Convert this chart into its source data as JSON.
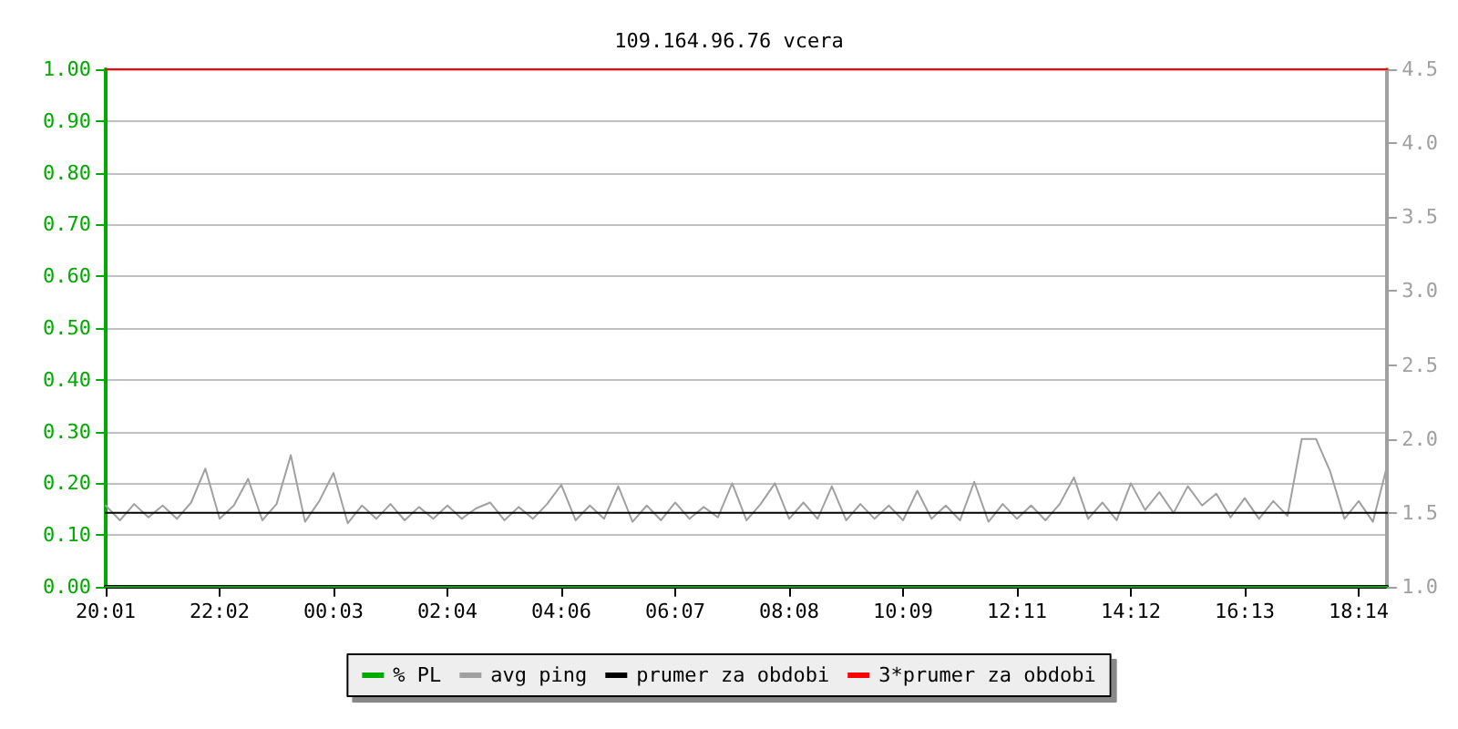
{
  "chart_data": {
    "type": "line",
    "title": "109.164.96.76 vcera",
    "categories": [
      "20:01",
      null,
      null,
      null,
      null,
      null,
      null,
      null,
      "22:02",
      null,
      null,
      null,
      null,
      null,
      null,
      null,
      "00:03",
      null,
      null,
      null,
      null,
      null,
      null,
      null,
      "02:04",
      null,
      null,
      null,
      null,
      null,
      null,
      null,
      "04:06",
      null,
      null,
      null,
      null,
      null,
      null,
      null,
      "06:07",
      null,
      null,
      null,
      null,
      null,
      null,
      null,
      "08:08",
      null,
      null,
      null,
      null,
      null,
      null,
      null,
      "10:09",
      null,
      null,
      null,
      null,
      null,
      null,
      null,
      "12:11",
      null,
      null,
      null,
      null,
      null,
      null,
      null,
      "14:12",
      null,
      null,
      null,
      null,
      null,
      null,
      null,
      "16:13",
      null,
      null,
      null,
      null,
      null,
      null,
      null,
      "18:14",
      null,
      null
    ],
    "ylim": [
      0,
      1
    ],
    "yticks": [
      {
        "value": 0,
        "label": "0.00"
      },
      {
        "value": 0.1,
        "label": "0.10"
      },
      {
        "value": 0.2,
        "label": "0.20"
      },
      {
        "value": 0.3,
        "label": "0.30"
      },
      {
        "value": 0.4,
        "label": "0.40"
      },
      {
        "value": 0.5,
        "label": "0.50"
      },
      {
        "value": 0.6,
        "label": "0.60"
      },
      {
        "value": 0.7,
        "label": "0.70"
      },
      {
        "value": 0.8,
        "label": "0.80"
      },
      {
        "value": 0.9,
        "label": "0.90"
      },
      {
        "value": 1,
        "label": "1.00"
      }
    ],
    "y2lim": [
      1,
      4.5
    ],
    "y2ticks": [
      {
        "value": 1,
        "label": "1.0"
      },
      {
        "value": 1.5,
        "label": "1.5"
      },
      {
        "value": 2,
        "label": "2.0"
      },
      {
        "value": 2.5,
        "label": "2.5"
      },
      {
        "value": 3,
        "label": "3.0"
      },
      {
        "value": 3.5,
        "label": "3.5"
      },
      {
        "value": 4,
        "label": "4.0"
      },
      {
        "value": 4.5,
        "label": "4.5"
      }
    ],
    "grid": "y",
    "legend": "bottom",
    "marker": "none",
    "line_style": "solid",
    "series": [
      {
        "name": "% PL",
        "color": "#00aa00",
        "values": [
          0,
          0,
          0,
          0,
          0,
          0,
          0,
          0,
          0,
          0,
          0,
          0,
          0,
          0,
          0,
          0,
          0,
          0,
          0,
          0,
          0,
          0,
          0,
          0,
          0,
          0,
          0,
          0,
          0,
          0,
          0,
          0,
          0,
          0,
          0,
          0,
          0,
          0,
          0,
          0,
          0,
          0,
          0,
          0,
          0,
          0,
          0,
          0,
          0,
          0,
          0,
          0,
          0,
          0,
          0,
          0,
          0,
          0,
          0,
          0,
          0,
          0,
          0,
          0,
          0,
          0,
          0,
          0,
          0,
          0,
          0,
          0,
          0,
          0,
          0,
          0,
          0,
          0,
          0,
          0,
          0,
          0,
          0,
          0,
          0,
          0,
          0,
          0,
          0,
          0,
          0
        ]
      },
      {
        "name": "avg ping",
        "color": "#a0a0a0",
        "axis": "y2",
        "values": [
          1.55,
          1.45,
          1.56,
          1.47,
          1.55,
          1.46,
          1.57,
          1.8,
          1.46,
          1.55,
          1.73,
          1.45,
          1.56,
          1.89,
          1.44,
          1.58,
          1.77,
          1.43,
          1.55,
          1.46,
          1.56,
          1.45,
          1.54,
          1.46,
          1.55,
          1.46,
          1.53,
          1.57,
          1.45,
          1.54,
          1.46,
          1.56,
          1.69,
          1.45,
          1.55,
          1.46,
          1.68,
          1.44,
          1.55,
          1.45,
          1.57,
          1.46,
          1.54,
          1.47,
          1.7,
          1.45,
          1.56,
          1.7,
          1.46,
          1.57,
          1.46,
          1.68,
          1.45,
          1.56,
          1.46,
          1.55,
          1.45,
          1.65,
          1.46,
          1.55,
          1.45,
          1.71,
          1.44,
          1.56,
          1.46,
          1.55,
          1.45,
          1.56,
          1.74,
          1.46,
          1.57,
          1.45,
          1.7,
          1.52,
          1.64,
          1.5,
          1.68,
          1.55,
          1.63,
          1.47,
          1.6,
          1.46,
          1.58,
          1.48,
          2.0,
          2.0,
          1.78,
          1.46,
          1.58,
          1.44,
          1.82
        ]
      },
      {
        "name": "prumer za obdobi",
        "color": "#000000",
        "axis": "y2",
        "values": [
          1.5,
          1.5,
          1.5,
          1.5,
          1.5,
          1.5,
          1.5,
          1.5,
          1.5,
          1.5,
          1.5,
          1.5,
          1.5,
          1.5,
          1.5,
          1.5,
          1.5,
          1.5,
          1.5,
          1.5,
          1.5,
          1.5,
          1.5,
          1.5,
          1.5,
          1.5,
          1.5,
          1.5,
          1.5,
          1.5,
          1.5,
          1.5,
          1.5,
          1.5,
          1.5,
          1.5,
          1.5,
          1.5,
          1.5,
          1.5,
          1.5,
          1.5,
          1.5,
          1.5,
          1.5,
          1.5,
          1.5,
          1.5,
          1.5,
          1.5,
          1.5,
          1.5,
          1.5,
          1.5,
          1.5,
          1.5,
          1.5,
          1.5,
          1.5,
          1.5,
          1.5,
          1.5,
          1.5,
          1.5,
          1.5,
          1.5,
          1.5,
          1.5,
          1.5,
          1.5,
          1.5,
          1.5,
          1.5,
          1.5,
          1.5,
          1.5,
          1.5,
          1.5,
          1.5,
          1.5,
          1.5,
          1.5,
          1.5,
          1.5,
          1.5,
          1.5,
          1.5,
          1.5,
          1.5,
          1.5,
          1.5
        ]
      },
      {
        "name": "3*prumer za obdobi",
        "color": "#ff0000",
        "axis": "y2",
        "values": [
          4.5,
          4.5,
          4.5,
          4.5,
          4.5,
          4.5,
          4.5,
          4.5,
          4.5,
          4.5,
          4.5,
          4.5,
          4.5,
          4.5,
          4.5,
          4.5,
          4.5,
          4.5,
          4.5,
          4.5,
          4.5,
          4.5,
          4.5,
          4.5,
          4.5,
          4.5,
          4.5,
          4.5,
          4.5,
          4.5,
          4.5,
          4.5,
          4.5,
          4.5,
          4.5,
          4.5,
          4.5,
          4.5,
          4.5,
          4.5,
          4.5,
          4.5,
          4.5,
          4.5,
          4.5,
          4.5,
          4.5,
          4.5,
          4.5,
          4.5,
          4.5,
          4.5,
          4.5,
          4.5,
          4.5,
          4.5,
          4.5,
          4.5,
          4.5,
          4.5,
          4.5,
          4.5,
          4.5,
          4.5,
          4.5,
          4.5,
          4.5,
          4.5,
          4.5,
          4.5,
          4.5,
          4.5,
          4.5,
          4.5,
          4.5,
          4.5,
          4.5,
          4.5,
          4.5,
          4.5,
          4.5,
          4.5,
          4.5,
          4.5,
          4.5,
          4.5,
          4.5,
          4.5,
          4.5,
          4.5,
          4.5
        ]
      }
    ]
  }
}
